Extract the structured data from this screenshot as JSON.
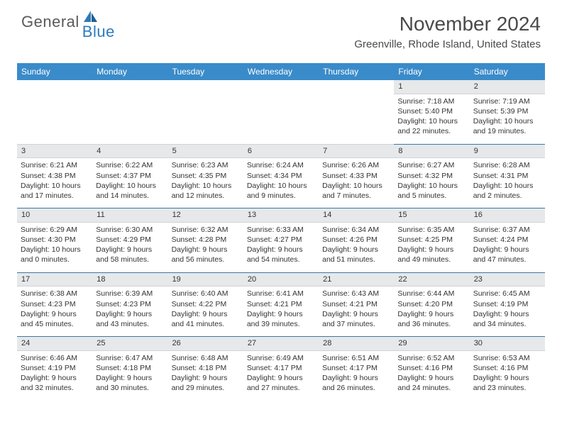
{
  "logo": {
    "text1": "General",
    "text2": "Blue"
  },
  "title": "November 2024",
  "location": "Greenville, Rhode Island, United States",
  "colors": {
    "header_bg": "#3a8bc9",
    "header_text": "#ffffff",
    "daynum_bg": "#e6e8ea",
    "row_border": "#3a78a8",
    "cell_border": "#cfd4d8",
    "logo_gray": "#5a5a5a",
    "logo_blue": "#2b7bbf",
    "body_text": "#333333"
  },
  "days_of_week": [
    "Sunday",
    "Monday",
    "Tuesday",
    "Wednesday",
    "Thursday",
    "Friday",
    "Saturday"
  ],
  "weeks": [
    [
      null,
      null,
      null,
      null,
      null,
      {
        "n": "1",
        "sr": "Sunrise: 7:18 AM",
        "ss": "Sunset: 5:40 PM",
        "dl1": "Daylight: 10 hours",
        "dl2": "and 22 minutes."
      },
      {
        "n": "2",
        "sr": "Sunrise: 7:19 AM",
        "ss": "Sunset: 5:39 PM",
        "dl1": "Daylight: 10 hours",
        "dl2": "and 19 minutes."
      }
    ],
    [
      {
        "n": "3",
        "sr": "Sunrise: 6:21 AM",
        "ss": "Sunset: 4:38 PM",
        "dl1": "Daylight: 10 hours",
        "dl2": "and 17 minutes."
      },
      {
        "n": "4",
        "sr": "Sunrise: 6:22 AM",
        "ss": "Sunset: 4:37 PM",
        "dl1": "Daylight: 10 hours",
        "dl2": "and 14 minutes."
      },
      {
        "n": "5",
        "sr": "Sunrise: 6:23 AM",
        "ss": "Sunset: 4:35 PM",
        "dl1": "Daylight: 10 hours",
        "dl2": "and 12 minutes."
      },
      {
        "n": "6",
        "sr": "Sunrise: 6:24 AM",
        "ss": "Sunset: 4:34 PM",
        "dl1": "Daylight: 10 hours",
        "dl2": "and 9 minutes."
      },
      {
        "n": "7",
        "sr": "Sunrise: 6:26 AM",
        "ss": "Sunset: 4:33 PM",
        "dl1": "Daylight: 10 hours",
        "dl2": "and 7 minutes."
      },
      {
        "n": "8",
        "sr": "Sunrise: 6:27 AM",
        "ss": "Sunset: 4:32 PM",
        "dl1": "Daylight: 10 hours",
        "dl2": "and 5 minutes."
      },
      {
        "n": "9",
        "sr": "Sunrise: 6:28 AM",
        "ss": "Sunset: 4:31 PM",
        "dl1": "Daylight: 10 hours",
        "dl2": "and 2 minutes."
      }
    ],
    [
      {
        "n": "10",
        "sr": "Sunrise: 6:29 AM",
        "ss": "Sunset: 4:30 PM",
        "dl1": "Daylight: 10 hours",
        "dl2": "and 0 minutes."
      },
      {
        "n": "11",
        "sr": "Sunrise: 6:30 AM",
        "ss": "Sunset: 4:29 PM",
        "dl1": "Daylight: 9 hours",
        "dl2": "and 58 minutes."
      },
      {
        "n": "12",
        "sr": "Sunrise: 6:32 AM",
        "ss": "Sunset: 4:28 PM",
        "dl1": "Daylight: 9 hours",
        "dl2": "and 56 minutes."
      },
      {
        "n": "13",
        "sr": "Sunrise: 6:33 AM",
        "ss": "Sunset: 4:27 PM",
        "dl1": "Daylight: 9 hours",
        "dl2": "and 54 minutes."
      },
      {
        "n": "14",
        "sr": "Sunrise: 6:34 AM",
        "ss": "Sunset: 4:26 PM",
        "dl1": "Daylight: 9 hours",
        "dl2": "and 51 minutes."
      },
      {
        "n": "15",
        "sr": "Sunrise: 6:35 AM",
        "ss": "Sunset: 4:25 PM",
        "dl1": "Daylight: 9 hours",
        "dl2": "and 49 minutes."
      },
      {
        "n": "16",
        "sr": "Sunrise: 6:37 AM",
        "ss": "Sunset: 4:24 PM",
        "dl1": "Daylight: 9 hours",
        "dl2": "and 47 minutes."
      }
    ],
    [
      {
        "n": "17",
        "sr": "Sunrise: 6:38 AM",
        "ss": "Sunset: 4:23 PM",
        "dl1": "Daylight: 9 hours",
        "dl2": "and 45 minutes."
      },
      {
        "n": "18",
        "sr": "Sunrise: 6:39 AM",
        "ss": "Sunset: 4:23 PM",
        "dl1": "Daylight: 9 hours",
        "dl2": "and 43 minutes."
      },
      {
        "n": "19",
        "sr": "Sunrise: 6:40 AM",
        "ss": "Sunset: 4:22 PM",
        "dl1": "Daylight: 9 hours",
        "dl2": "and 41 minutes."
      },
      {
        "n": "20",
        "sr": "Sunrise: 6:41 AM",
        "ss": "Sunset: 4:21 PM",
        "dl1": "Daylight: 9 hours",
        "dl2": "and 39 minutes."
      },
      {
        "n": "21",
        "sr": "Sunrise: 6:43 AM",
        "ss": "Sunset: 4:21 PM",
        "dl1": "Daylight: 9 hours",
        "dl2": "and 37 minutes."
      },
      {
        "n": "22",
        "sr": "Sunrise: 6:44 AM",
        "ss": "Sunset: 4:20 PM",
        "dl1": "Daylight: 9 hours",
        "dl2": "and 36 minutes."
      },
      {
        "n": "23",
        "sr": "Sunrise: 6:45 AM",
        "ss": "Sunset: 4:19 PM",
        "dl1": "Daylight: 9 hours",
        "dl2": "and 34 minutes."
      }
    ],
    [
      {
        "n": "24",
        "sr": "Sunrise: 6:46 AM",
        "ss": "Sunset: 4:19 PM",
        "dl1": "Daylight: 9 hours",
        "dl2": "and 32 minutes."
      },
      {
        "n": "25",
        "sr": "Sunrise: 6:47 AM",
        "ss": "Sunset: 4:18 PM",
        "dl1": "Daylight: 9 hours",
        "dl2": "and 30 minutes."
      },
      {
        "n": "26",
        "sr": "Sunrise: 6:48 AM",
        "ss": "Sunset: 4:18 PM",
        "dl1": "Daylight: 9 hours",
        "dl2": "and 29 minutes."
      },
      {
        "n": "27",
        "sr": "Sunrise: 6:49 AM",
        "ss": "Sunset: 4:17 PM",
        "dl1": "Daylight: 9 hours",
        "dl2": "and 27 minutes."
      },
      {
        "n": "28",
        "sr": "Sunrise: 6:51 AM",
        "ss": "Sunset: 4:17 PM",
        "dl1": "Daylight: 9 hours",
        "dl2": "and 26 minutes."
      },
      {
        "n": "29",
        "sr": "Sunrise: 6:52 AM",
        "ss": "Sunset: 4:16 PM",
        "dl1": "Daylight: 9 hours",
        "dl2": "and 24 minutes."
      },
      {
        "n": "30",
        "sr": "Sunrise: 6:53 AM",
        "ss": "Sunset: 4:16 PM",
        "dl1": "Daylight: 9 hours",
        "dl2": "and 23 minutes."
      }
    ]
  ]
}
